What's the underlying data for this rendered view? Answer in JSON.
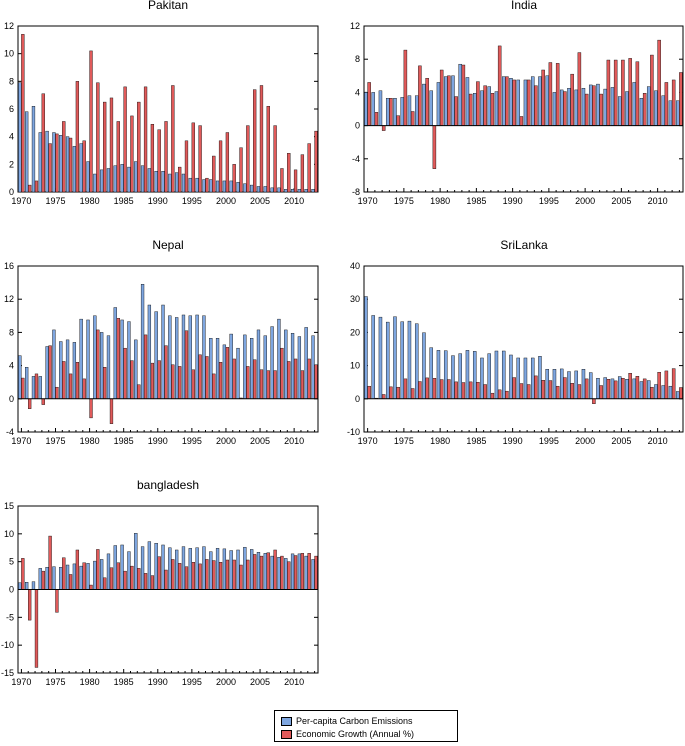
{
  "colors": {
    "carbon": "#7ea6e0",
    "growth": "#e05a5a",
    "axis": "#000000"
  },
  "legend": {
    "carbon_label": "Per-capita Carbon Emissions",
    "growth_label": "Economic Growth (Annual %)"
  },
  "chart_data": [
    {
      "type": "bar",
      "title": "Pakitan",
      "years": [
        1970,
        1971,
        1972,
        1973,
        1974,
        1975,
        1976,
        1977,
        1978,
        1979,
        1980,
        1981,
        1982,
        1983,
        1984,
        1985,
        1986,
        1987,
        1988,
        1989,
        1990,
        1991,
        1992,
        1993,
        1994,
        1995,
        1996,
        1997,
        1998,
        1999,
        2000,
        2001,
        2002,
        2003,
        2004,
        2005,
        2006,
        2007,
        2008,
        2009,
        2010,
        2011,
        2012,
        2013
      ],
      "ylim": [
        0,
        12
      ],
      "yticks": [
        0,
        2,
        4,
        6,
        8,
        10,
        12
      ],
      "xticks": [
        1970,
        1975,
        1980,
        1985,
        1990,
        1995,
        2000,
        2005,
        2010
      ],
      "series": [
        {
          "name": "Per-capita Carbon Emissions",
          "values": [
            7.9,
            5.8,
            6.2,
            4.3,
            4.4,
            4.3,
            4.1,
            4.0,
            3.3,
            3.5,
            2.2,
            1.3,
            1.6,
            1.7,
            1.9,
            2.0,
            1.8,
            2.2,
            1.9,
            1.7,
            1.5,
            1.5,
            1.3,
            1.4,
            1.3,
            1.0,
            1.0,
            0.9,
            0.9,
            0.8,
            0.8,
            0.8,
            0.7,
            0.6,
            0.5,
            0.4,
            0.4,
            0.3,
            0.3,
            0.2,
            0.2,
            0.2,
            0.2,
            0.2
          ]
        },
        {
          "name": "Economic Growth (Annual %)",
          "values": [
            11.4,
            0.5,
            0.8,
            7.1,
            3.5,
            4.2,
            5.1,
            3.9,
            8.0,
            3.7,
            10.2,
            7.9,
            6.5,
            6.8,
            5.1,
            7.6,
            5.5,
            6.5,
            7.6,
            4.9,
            4.5,
            5.1,
            7.7,
            1.8,
            3.7,
            5.0,
            4.8,
            1.0,
            2.6,
            3.7,
            4.3,
            2.0,
            3.2,
            4.8,
            7.4,
            7.7,
            6.2,
            4.8,
            1.7,
            2.8,
            1.6,
            2.7,
            3.5,
            4.4
          ]
        }
      ]
    },
    {
      "type": "bar",
      "title": "India",
      "years": [
        1970,
        1971,
        1972,
        1973,
        1974,
        1975,
        1976,
        1977,
        1978,
        1979,
        1980,
        1981,
        1982,
        1983,
        1984,
        1985,
        1986,
        1987,
        1988,
        1989,
        1990,
        1991,
        1992,
        1993,
        1994,
        1995,
        1996,
        1997,
        1998,
        1999,
        2000,
        2001,
        2002,
        2003,
        2004,
        2005,
        2006,
        2007,
        2008,
        2009,
        2010,
        2011,
        2012,
        2013
      ],
      "ylim": [
        -8,
        12
      ],
      "yticks": [
        -8,
        -4,
        0,
        4,
        8,
        12
      ],
      "xticks": [
        1970,
        1975,
        1980,
        1985,
        1990,
        1995,
        2000,
        2005,
        2010
      ],
      "series": [
        {
          "name": "Per-capita Carbon Emissions",
          "values": [
            4.0,
            4.0,
            4.2,
            3.3,
            3.3,
            3.4,
            3.6,
            3.6,
            5.0,
            4.2,
            5.2,
            5.9,
            6.0,
            7.4,
            5.8,
            3.9,
            4.2,
            4.7,
            4.1,
            5.9,
            5.7,
            5.5,
            5.5,
            5.9,
            5.9,
            6.0,
            4.0,
            4.3,
            4.5,
            4.3,
            4.5,
            4.9,
            5.0,
            4.4,
            4.6,
            3.5,
            4.1,
            5.2,
            3.3,
            4.7,
            4.2,
            3.6,
            3.0,
            3.0
          ]
        },
        {
          "name": "Economic Growth (Annual %)",
          "values": [
            5.2,
            1.6,
            -0.6,
            3.3,
            1.2,
            9.1,
            1.7,
            7.2,
            5.7,
            -5.2,
            6.7,
            6.0,
            3.5,
            7.3,
            3.8,
            5.3,
            4.8,
            3.9,
            9.6,
            5.9,
            5.5,
            1.1,
            5.5,
            4.8,
            6.7,
            7.6,
            7.5,
            4.1,
            6.2,
            8.8,
            3.8,
            4.8,
            3.8,
            7.9,
            7.9,
            7.9,
            8.1,
            7.7,
            3.9,
            8.5,
            10.3,
            5.2,
            5.5,
            6.4
          ]
        }
      ]
    },
    {
      "type": "bar",
      "title": "Nepal",
      "years": [
        1970,
        1971,
        1972,
        1973,
        1974,
        1975,
        1976,
        1977,
        1978,
        1979,
        1980,
        1981,
        1982,
        1983,
        1984,
        1985,
        1986,
        1987,
        1988,
        1989,
        1990,
        1991,
        1992,
        1993,
        1994,
        1995,
        1996,
        1997,
        1998,
        1999,
        2000,
        2001,
        2002,
        2003,
        2004,
        2005,
        2006,
        2007,
        2008,
        2009,
        2010,
        2011,
        2012,
        2013
      ],
      "ylim": [
        -4,
        16
      ],
      "yticks": [
        -4,
        0,
        4,
        8,
        12,
        16
      ],
      "xticks": [
        1970,
        1975,
        1980,
        1985,
        1990,
        1995,
        2000,
        2005,
        2010
      ],
      "series": [
        {
          "name": "Per-capita Carbon Emissions",
          "values": [
            5.2,
            3.8,
            2.7,
            2.7,
            6.3,
            8.3,
            6.9,
            7.1,
            6.8,
            9.6,
            9.5,
            10.0,
            8.0,
            7.6,
            11.0,
            9.5,
            9.3,
            7.1,
            13.8,
            11.3,
            10.5,
            11.3,
            10.0,
            9.8,
            10.1,
            10.0,
            10.1,
            10.0,
            7.3,
            7.3,
            6.5,
            7.8,
            6.1,
            7.7,
            7.3,
            8.3,
            7.6,
            8.7,
            9.6,
            8.3,
            7.9,
            7.5,
            8.6,
            7.6
          ]
        },
        {
          "name": "Economic Growth (Annual %)",
          "values": [
            2.5,
            -1.2,
            3.0,
            -0.7,
            6.4,
            1.4,
            4.5,
            3.0,
            4.4,
            2.4,
            -2.3,
            8.3,
            3.8,
            -3.0,
            9.7,
            6.1,
            4.6,
            1.7,
            7.7,
            4.3,
            4.6,
            6.4,
            4.1,
            3.9,
            8.2,
            3.5,
            5.3,
            5.1,
            3.0,
            4.4,
            6.2,
            4.8,
            0.1,
            3.9,
            4.7,
            3.5,
            3.4,
            3.4,
            6.1,
            4.5,
            4.8,
            3.4,
            4.8,
            4.1
          ]
        }
      ]
    },
    {
      "type": "bar",
      "title": "SriLanka",
      "years": [
        1970,
        1971,
        1972,
        1973,
        1974,
        1975,
        1976,
        1977,
        1978,
        1979,
        1980,
        1981,
        1982,
        1983,
        1984,
        1985,
        1986,
        1987,
        1988,
        1989,
        1990,
        1991,
        1992,
        1993,
        1994,
        1995,
        1996,
        1997,
        1998,
        1999,
        2000,
        2001,
        2002,
        2003,
        2004,
        2005,
        2006,
        2007,
        2008,
        2009,
        2010,
        2011,
        2012,
        2013
      ],
      "ylim": [
        -10,
        40
      ],
      "yticks": [
        -10,
        0,
        10,
        20,
        30,
        40
      ],
      "xticks": [
        1970,
        1975,
        1980,
        1985,
        1990,
        1995,
        2000,
        2005,
        2010
      ],
      "series": [
        {
          "name": "Per-capita Carbon Emissions",
          "values": [
            30.8,
            25.1,
            24.6,
            23.1,
            24.7,
            23.2,
            23.4,
            22.6,
            19.9,
            15.4,
            14.6,
            14.5,
            13.0,
            13.6,
            14.6,
            14.3,
            12.3,
            13.6,
            14.4,
            14.4,
            13.2,
            12.3,
            12.3,
            12.3,
            12.8,
            8.9,
            8.9,
            9.0,
            8.2,
            8.4,
            8.9,
            7.9,
            6.2,
            6.4,
            6.0,
            6.7,
            5.9,
            6.0,
            5.2,
            5.5,
            4.3,
            4.0,
            3.8,
            2.2
          ]
        },
        {
          "name": "Economic Growth (Annual %)",
          "values": [
            3.8,
            0.2,
            1.3,
            3.6,
            3.5,
            6.0,
            3.1,
            5.2,
            6.3,
            6.2,
            5.8,
            5.8,
            5.1,
            4.9,
            5.1,
            5.0,
            4.3,
            1.7,
            2.7,
            2.3,
            6.4,
            4.6,
            4.3,
            6.9,
            5.6,
            5.5,
            3.8,
            6.4,
            4.7,
            4.3,
            6.0,
            -1.5,
            4.0,
            5.9,
            5.4,
            6.2,
            7.7,
            6.8,
            6.0,
            3.5,
            8.0,
            8.4,
            9.1,
            3.4
          ]
        }
      ]
    },
    {
      "type": "bar",
      "title": "bangladesh",
      "years": [
        1970,
        1971,
        1972,
        1973,
        1974,
        1975,
        1976,
        1977,
        1978,
        1979,
        1980,
        1981,
        1982,
        1983,
        1984,
        1985,
        1986,
        1987,
        1988,
        1989,
        1990,
        1991,
        1992,
        1993,
        1994,
        1995,
        1996,
        1997,
        1998,
        1999,
        2000,
        2001,
        2002,
        2003,
        2004,
        2005,
        2006,
        2007,
        2008,
        2009,
        2010,
        2011,
        2012,
        2013
      ],
      "ylim": [
        -15,
        15
      ],
      "yticks": [
        -15,
        -10,
        -5,
        0,
        5,
        10,
        15
      ],
      "xticks": [
        1970,
        1975,
        1980,
        1985,
        1990,
        1995,
        2000,
        2005,
        2010
      ],
      "series": [
        {
          "name": "Per-capita Carbon Emissions",
          "values": [
            1.2,
            1.3,
            1.4,
            3.8,
            4.0,
            4.1,
            4.0,
            4.4,
            4.6,
            4.2,
            4.7,
            5.1,
            5.4,
            6.4,
            7.9,
            8.0,
            6.8,
            10.1,
            7.7,
            8.6,
            8.3,
            8.0,
            7.5,
            7.1,
            7.7,
            7.4,
            7.5,
            7.7,
            6.8,
            7.4,
            7.3,
            7.0,
            7.1,
            7.6,
            7.2,
            6.7,
            6.5,
            6.0,
            5.8,
            5.6,
            6.4,
            6.4,
            6.0,
            5.4
          ]
        },
        {
          "name": "Economic Growth (Annual %)",
          "values": [
            5.6,
            -5.5,
            -14.0,
            3.3,
            9.6,
            -4.1,
            5.7,
            2.7,
            7.1,
            4.8,
            0.8,
            7.2,
            2.1,
            3.9,
            4.8,
            3.3,
            4.2,
            3.8,
            2.9,
            2.5,
            5.9,
            3.5,
            5.4,
            4.7,
            4.1,
            4.9,
            4.6,
            5.4,
            5.2,
            4.9,
            5.3,
            5.3,
            4.4,
            5.3,
            6.3,
            6.0,
            6.6,
            7.1,
            6.0,
            5.0,
            6.1,
            6.5,
            6.5,
            6.0
          ]
        }
      ]
    }
  ]
}
